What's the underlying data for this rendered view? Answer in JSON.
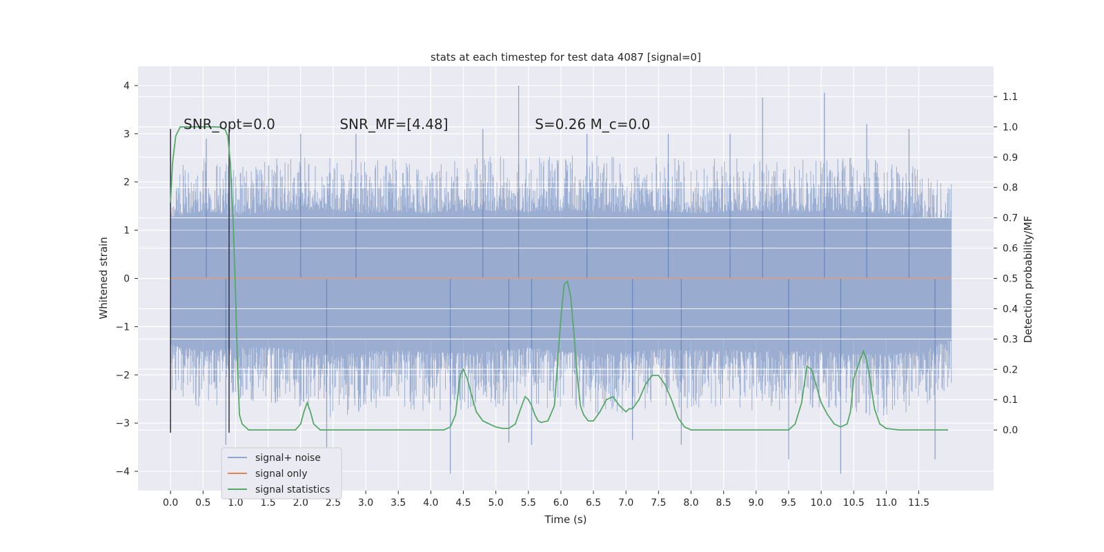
{
  "chart_data": {
    "type": "line",
    "title": "stats at each timestep for test data 4087 [signal=0]",
    "xlabel": "Time (s)",
    "ylabel": "Whitened strain",
    "y2label": "Detection probability/MF",
    "xlim": [
      -0.5,
      12.65
    ],
    "ylim": [
      -4.4,
      4.4
    ],
    "y2lim": [
      -0.2,
      1.2
    ],
    "x_ticks": [
      0.0,
      0.5,
      1.0,
      1.5,
      2.0,
      2.5,
      3.0,
      3.5,
      4.0,
      4.5,
      5.0,
      5.5,
      6.0,
      6.5,
      7.0,
      7.5,
      8.0,
      8.5,
      9.0,
      9.5,
      10.0,
      10.5,
      11.0,
      11.5
    ],
    "x_tick_labels": [
      "0.0",
      "0.5",
      "1.0",
      "1.5",
      "2.0",
      "2.5",
      "3.0",
      "3.5",
      "4.0",
      "4.5",
      "5.0",
      "5.5",
      "6.0",
      "6.5",
      "7.0",
      "7.5",
      "8.0",
      "8.5",
      "9.0",
      "9.5",
      "10.0",
      "10.5",
      "11.0",
      "11.5"
    ],
    "y_ticks": [
      -4,
      -3,
      -2,
      -1,
      0,
      1,
      2,
      3,
      4
    ],
    "y_tick_labels": [
      "−4",
      "−3",
      "−2",
      "−1",
      "0",
      "1",
      "2",
      "3",
      "4"
    ],
    "y2_ticks": [
      0.0,
      0.1,
      0.2,
      0.3,
      0.4,
      0.5,
      0.6,
      0.7,
      0.8,
      0.9,
      1.0,
      1.1
    ],
    "y2_tick_labels": [
      "0.0",
      "0.1",
      "0.2",
      "0.3",
      "0.4",
      "0.5",
      "0.6",
      "0.7",
      "0.8",
      "0.9",
      "1.0",
      "1.1"
    ],
    "grid": true,
    "legend_position": "lower-left",
    "annotations": [
      {
        "x": 0.2,
        "y": 3.1,
        "text": "SNR_opt=0.0"
      },
      {
        "x": 2.6,
        "y": 3.1,
        "text": "SNR_MF=[4.48]"
      },
      {
        "x": 5.6,
        "y": 3.1,
        "text": "S=0.26   M_c=0.0"
      }
    ],
    "markers": [
      {
        "x": 0.0,
        "ymin": -3.2,
        "ymax": 3.1
      },
      {
        "x": 0.9,
        "ymin": -3.2,
        "ymax": 3.1
      }
    ],
    "series": [
      {
        "name": "signal+ noise",
        "axis": "left",
        "color": "#4c72b0",
        "x_range": [
          0.0,
          12.0
        ],
        "envelope_points": [
          [
            0.0,
            2.3,
            -2.5
          ],
          [
            0.5,
            2.55,
            -2.75
          ],
          [
            1.0,
            2.35,
            -2.55
          ],
          [
            1.5,
            2.5,
            -2.6
          ],
          [
            2.0,
            2.6,
            -2.7
          ],
          [
            2.5,
            2.55,
            -2.9
          ],
          [
            3.0,
            2.45,
            -2.75
          ],
          [
            3.5,
            2.5,
            -2.7
          ],
          [
            4.0,
            2.45,
            -2.8
          ],
          [
            4.5,
            2.55,
            -2.8
          ],
          [
            5.0,
            2.55,
            -2.75
          ],
          [
            5.5,
            2.5,
            -2.6
          ],
          [
            6.0,
            2.55,
            -2.75
          ],
          [
            6.5,
            2.55,
            -2.85
          ],
          [
            7.0,
            2.5,
            -2.8
          ],
          [
            7.5,
            2.55,
            -2.65
          ],
          [
            8.0,
            2.45,
            -2.7
          ],
          [
            8.5,
            2.5,
            -2.7
          ],
          [
            9.0,
            2.55,
            -2.75
          ],
          [
            9.5,
            2.45,
            -2.75
          ],
          [
            10.0,
            2.55,
            -2.75
          ],
          [
            10.5,
            2.5,
            -2.85
          ],
          [
            11.0,
            2.45,
            -2.85
          ],
          [
            11.5,
            2.3,
            -2.75
          ],
          [
            12.0,
            2.0,
            -2.3
          ]
        ],
        "spikes": [
          [
            0.55,
            2.9
          ],
          [
            0.85,
            -3.45
          ],
          [
            2.0,
            3.0
          ],
          [
            2.4,
            -3.5
          ],
          [
            2.85,
            3.0
          ],
          [
            4.3,
            -4.05
          ],
          [
            4.8,
            3.1
          ],
          [
            5.2,
            -3.4
          ],
          [
            5.35,
            4.0
          ],
          [
            5.55,
            -3.45
          ],
          [
            6.4,
            3.0
          ],
          [
            7.1,
            -3.35
          ],
          [
            7.65,
            3.0
          ],
          [
            7.85,
            -3.45
          ],
          [
            8.6,
            3.0
          ],
          [
            9.1,
            3.75
          ],
          [
            9.5,
            -3.75
          ],
          [
            10.05,
            3.85
          ],
          [
            10.3,
            -4.05
          ],
          [
            10.7,
            3.2
          ],
          [
            11.35,
            3.1
          ],
          [
            11.75,
            -3.75
          ]
        ]
      },
      {
        "name": "signal only",
        "axis": "left",
        "color": "#dd8452",
        "x": [
          0.0,
          12.0
        ],
        "y": [
          0.0,
          0.0
        ]
      },
      {
        "name": "signal statistics",
        "axis": "right",
        "color": "#55a868",
        "x": [
          0.0,
          0.03,
          0.08,
          0.15,
          0.25,
          0.4,
          0.55,
          0.7,
          0.78,
          0.84,
          0.88,
          0.92,
          0.96,
          1.0,
          1.03,
          1.06,
          1.1,
          1.2,
          1.4,
          1.6,
          1.8,
          1.92,
          2.0,
          2.05,
          2.1,
          2.15,
          2.2,
          2.3,
          2.5,
          3.0,
          3.5,
          4.0,
          4.2,
          4.3,
          4.38,
          4.45,
          4.5,
          4.56,
          4.62,
          4.7,
          4.8,
          4.9,
          5.0,
          5.1,
          5.2,
          5.3,
          5.38,
          5.45,
          5.5,
          5.55,
          5.6,
          5.65,
          5.7,
          5.8,
          5.9,
          6.0,
          6.05,
          6.1,
          6.15,
          6.2,
          6.25,
          6.3,
          6.35,
          6.42,
          6.5,
          6.6,
          6.7,
          6.8,
          6.9,
          7.0,
          7.05,
          7.1,
          7.2,
          7.3,
          7.4,
          7.5,
          7.6,
          7.7,
          7.8,
          7.9,
          8.0,
          8.2,
          8.4,
          8.6,
          9.0,
          9.3,
          9.5,
          9.6,
          9.7,
          9.78,
          9.85,
          9.92,
          10.0,
          10.1,
          10.2,
          10.3,
          10.4,
          10.45,
          10.5,
          10.58,
          10.65,
          10.7,
          10.75,
          10.82,
          10.9,
          11.0,
          11.2,
          11.5,
          11.8,
          11.95
        ],
        "y": [
          0.75,
          0.88,
          0.97,
          1.0,
          1.0,
          1.0,
          1.0,
          1.0,
          0.998,
          0.99,
          0.97,
          0.88,
          0.7,
          0.45,
          0.2,
          0.05,
          0.02,
          0.0,
          0.0,
          0.0,
          0.0,
          0.0,
          0.02,
          0.06,
          0.09,
          0.06,
          0.02,
          0.0,
          0.0,
          0.0,
          0.0,
          0.0,
          0.0,
          0.01,
          0.05,
          0.18,
          0.2,
          0.17,
          0.12,
          0.06,
          0.03,
          0.02,
          0.01,
          0.005,
          0.005,
          0.02,
          0.07,
          0.11,
          0.1,
          0.08,
          0.05,
          0.03,
          0.025,
          0.03,
          0.08,
          0.37,
          0.48,
          0.49,
          0.44,
          0.32,
          0.18,
          0.08,
          0.05,
          0.03,
          0.03,
          0.06,
          0.1,
          0.11,
          0.08,
          0.06,
          0.07,
          0.07,
          0.1,
          0.15,
          0.18,
          0.18,
          0.15,
          0.1,
          0.04,
          0.01,
          0.0,
          0.0,
          0.0,
          0.0,
          0.0,
          0.0,
          0.0,
          0.02,
          0.09,
          0.21,
          0.2,
          0.15,
          0.09,
          0.05,
          0.02,
          0.01,
          0.02,
          0.06,
          0.17,
          0.22,
          0.26,
          0.23,
          0.17,
          0.07,
          0.02,
          0.005,
          0.0,
          0.0,
          0.0,
          0.0
        ]
      }
    ]
  }
}
